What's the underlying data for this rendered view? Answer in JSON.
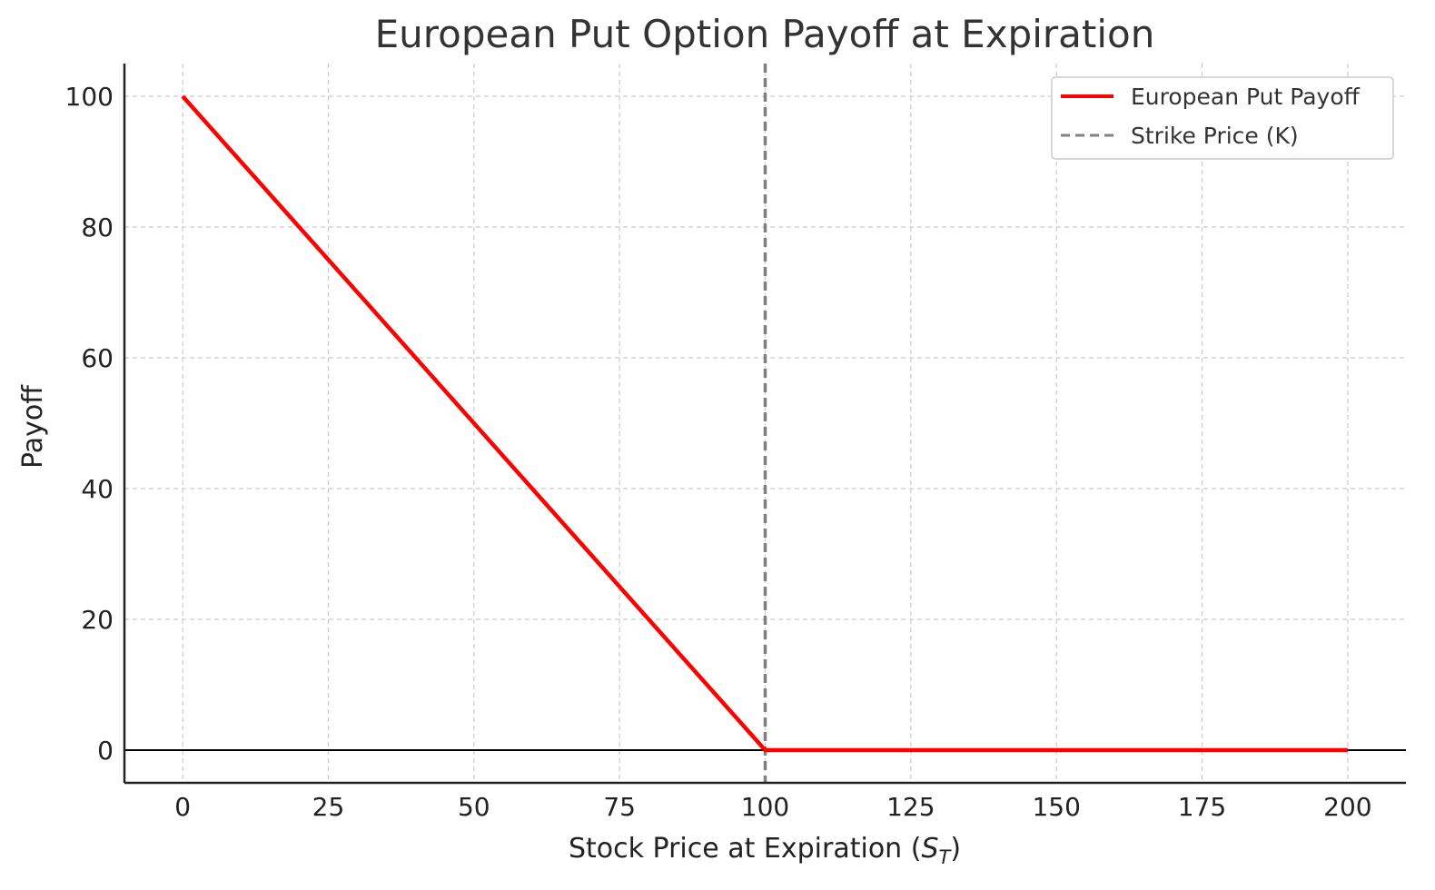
{
  "chart_data": {
    "type": "line",
    "title": "European Put Option Payoff at Expiration",
    "xlabel": {
      "text": "Stock Price at Expiration (",
      "symbol": "S",
      "subscript": "T",
      "suffix": ")"
    },
    "ylabel": "Payoff",
    "xlim": [
      -10,
      210
    ],
    "ylim": [
      -5,
      105
    ],
    "x_ticks": [
      0,
      25,
      50,
      75,
      100,
      125,
      150,
      175,
      200
    ],
    "y_ticks": [
      0,
      20,
      40,
      60,
      80,
      100
    ],
    "grid": true,
    "legend_position": "top-right",
    "series": [
      {
        "name": "European Put Payoff",
        "color": "#ff0000",
        "style": "solid",
        "x": [
          0,
          100,
          200
        ],
        "y": [
          100,
          0,
          0
        ]
      }
    ],
    "strike_line": {
      "name": "Strike Price (K)",
      "x": 100,
      "color": "#808080",
      "style": "dashed"
    },
    "reference_line": {
      "y": 0,
      "color": "#000000"
    }
  }
}
